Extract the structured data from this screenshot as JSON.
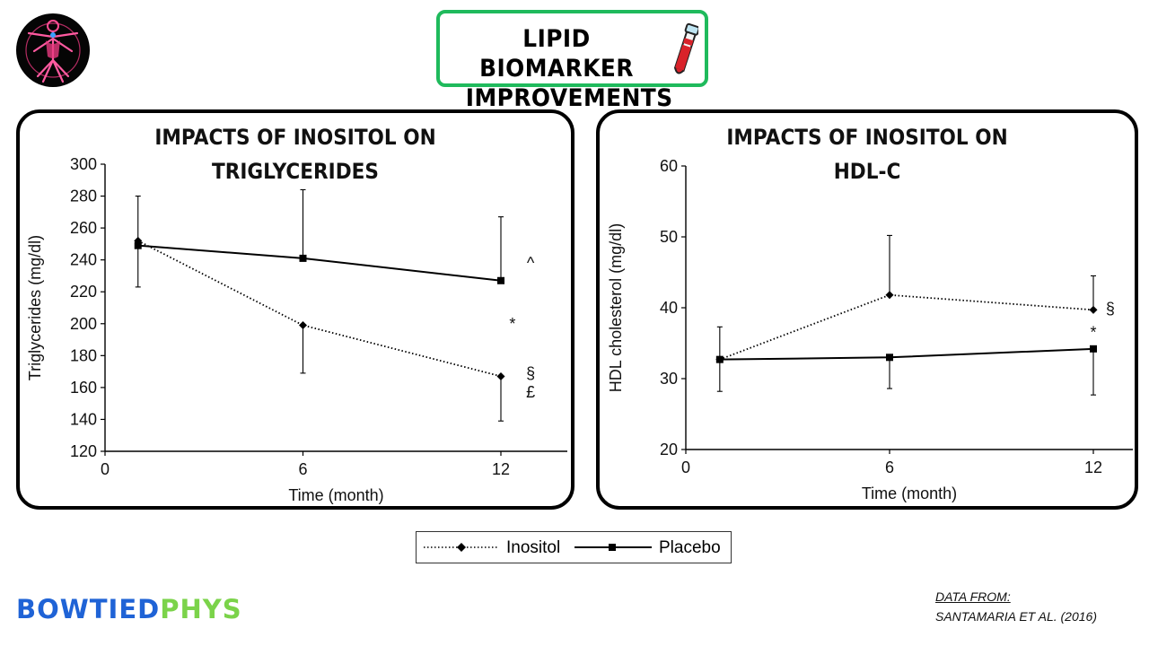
{
  "header": {
    "title_line1": "LIPID BIOMARKER",
    "title_line2": "IMPROVEMENTS"
  },
  "colors": {
    "accent": "#1fba5c",
    "brand_blue": "#1f63d6",
    "brand_green": "#7bd34a",
    "tube_red": "#d9222a"
  },
  "chart_data": [
    {
      "type": "line",
      "title_line1": "IMPACTS OF INOSITOL ON",
      "title_line2": "TRIGLYCERIDES",
      "xlabel": "Time (month)",
      "ylabel": "Triglycerides (mg/dl)",
      "xlim": [
        0,
        13.5
      ],
      "ylim": [
        120,
        300
      ],
      "xticks": [
        0,
        6,
        12
      ],
      "yticks": [
        120,
        140,
        160,
        180,
        200,
        220,
        240,
        260,
        280,
        300
      ],
      "series": [
        {
          "name": "Inositol",
          "style": "dotted",
          "marker": "diamond",
          "x": [
            1,
            6,
            12
          ],
          "y": [
            252,
            199,
            167
          ],
          "err_upper": [
            null,
            null,
            null
          ],
          "err_lower": [
            null,
            169,
            139
          ]
        },
        {
          "name": "Placebo",
          "style": "solid",
          "marker": "square",
          "x": [
            1,
            6,
            12
          ],
          "y": [
            249,
            241,
            227
          ],
          "err_upper": [
            280,
            284,
            267
          ],
          "err_lower": [
            223,
            null,
            null
          ]
        }
      ],
      "annotations": [
        {
          "text": "^",
          "x": 12.9,
          "y": 238
        },
        {
          "text": "*",
          "x": 12.35,
          "y": 200
        },
        {
          "text": "§",
          "x": 12.9,
          "y": 169
        },
        {
          "text": "£",
          "x": 12.9,
          "y": 157
        }
      ]
    },
    {
      "type": "line",
      "title_line1": "IMPACTS OF INOSITOL ON",
      "title_line2": "HDL-C",
      "xlabel": "Time (month)",
      "ylabel": "HDL cholesterol (mg/dl)",
      "xlim": [
        0,
        13.5
      ],
      "ylim": [
        20,
        60
      ],
      "xticks": [
        0,
        6,
        12
      ],
      "yticks": [
        20,
        30,
        40,
        50,
        60
      ],
      "series": [
        {
          "name": "Inositol",
          "style": "dotted",
          "marker": "diamond",
          "x": [
            1,
            6,
            12
          ],
          "y": [
            32.7,
            41.8,
            39.7
          ],
          "err_upper": [
            null,
            50.2,
            44.5
          ],
          "err_lower": [
            null,
            null,
            null
          ]
        },
        {
          "name": "Placebo",
          "style": "solid",
          "marker": "square",
          "x": [
            1,
            6,
            12
          ],
          "y": [
            32.7,
            33.0,
            34.2
          ],
          "err_upper": [
            37.3,
            null,
            null
          ],
          "err_lower": [
            28.2,
            28.6,
            27.7
          ]
        }
      ],
      "annotations": [
        {
          "text": "§",
          "x": 12.5,
          "y": 39.9
        },
        {
          "text": "*",
          "x": 12.0,
          "y": 36.5
        }
      ]
    }
  ],
  "legend": {
    "inositol": "Inositol",
    "placebo": "Placebo"
  },
  "footer": {
    "brand_part1": "BOWTIED",
    "brand_part2": "PHYS",
    "source_label": "DATA FROM:",
    "source_citation": "SANTAMARIA ET AL. (2016)"
  }
}
